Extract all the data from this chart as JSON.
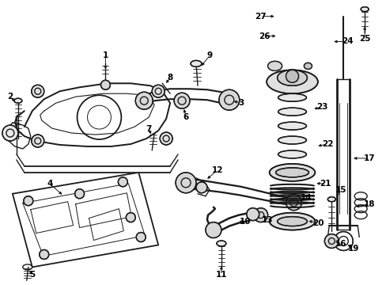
{
  "bg_color": "#ffffff",
  "fig_width": 4.89,
  "fig_height": 3.6,
  "dpi": 100,
  "lc": "#1a1a1a",
  "lw": 1.0
}
